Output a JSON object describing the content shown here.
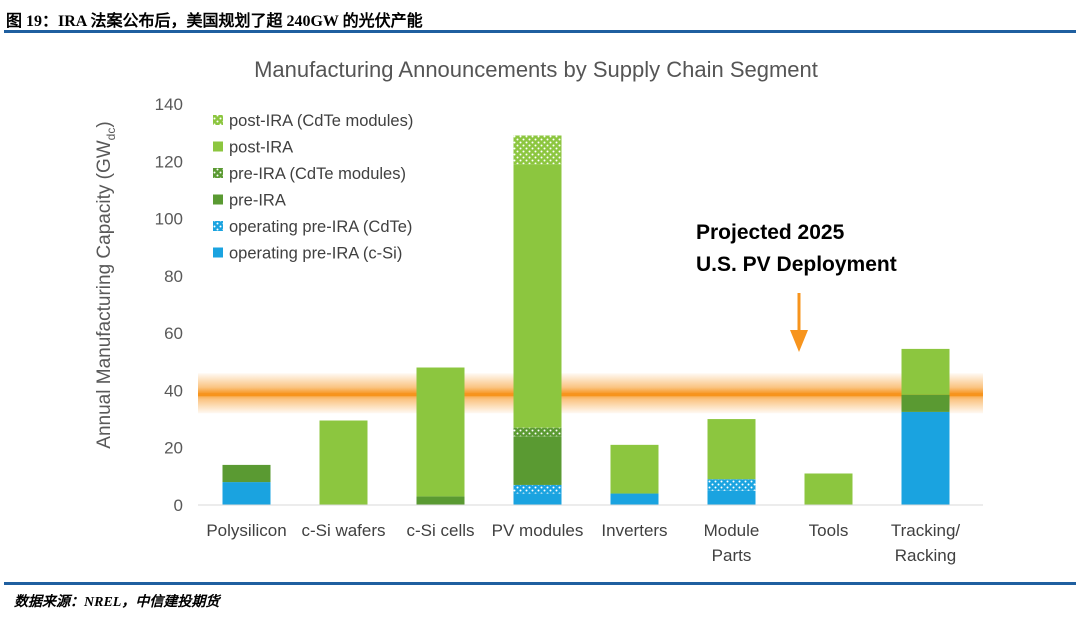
{
  "figure": {
    "caption": "图 19：IRA 法案公布后，美国规划了超 240GW 的光伏产能",
    "source": "数据来源：NREL，中信建投期货"
  },
  "colors": {
    "post_ira": "#8cc63f",
    "pre_ira": "#5a9a32",
    "operating": "#1aa3e0",
    "band": "#f7941d",
    "arrow": "#f7941d",
    "rule": "#1f5fa0"
  },
  "chart_data": {
    "type": "bar",
    "stacked": true,
    "title": "Manufacturing Announcements by Supply Chain Segment",
    "ylabel": "Annual Manufacturing Capacity (GW",
    "ylabel_sub": "dc",
    "ylabel_close": ")",
    "ylim": [
      0,
      140
    ],
    "yticks": [
      0,
      20,
      40,
      60,
      80,
      100,
      120,
      140
    ],
    "grid": false,
    "legend_position": "top-left",
    "categories": [
      [
        "Polysilicon"
      ],
      [
        "c-Si wafers"
      ],
      [
        "c-Si cells"
      ],
      [
        "PV modules"
      ],
      [
        "Inverters"
      ],
      [
        "Module",
        "Parts"
      ],
      [
        "Tools"
      ],
      [
        "Tracking/",
        "Racking"
      ]
    ],
    "series": [
      {
        "name": "operating pre-IRA (c-Si)",
        "values": [
          8,
          0,
          0,
          4,
          4,
          5,
          0,
          32.5
        ]
      },
      {
        "name": "operating pre-IRA (CdTe)",
        "values": [
          0,
          0,
          0,
          3,
          0,
          4,
          0,
          0
        ]
      },
      {
        "name": "pre-IRA",
        "values": [
          6,
          0,
          3,
          17,
          0,
          0,
          0,
          6
        ]
      },
      {
        "name": "pre-IRA (CdTe modules)",
        "values": [
          0,
          0,
          0,
          3,
          0,
          0,
          0,
          0
        ]
      },
      {
        "name": "post-IRA",
        "values": [
          0,
          29.5,
          45,
          92,
          17,
          21,
          11,
          16
        ]
      },
      {
        "name": "post-IRA (CdTe modules)",
        "values": [
          0,
          0,
          0,
          10,
          0,
          0,
          0,
          0
        ]
      }
    ],
    "reference_band": {
      "center": 38.5,
      "range": [
        32,
        46
      ]
    },
    "annotation": {
      "lines": [
        "Projected 2025",
        "U.S. PV Deployment"
      ]
    }
  }
}
